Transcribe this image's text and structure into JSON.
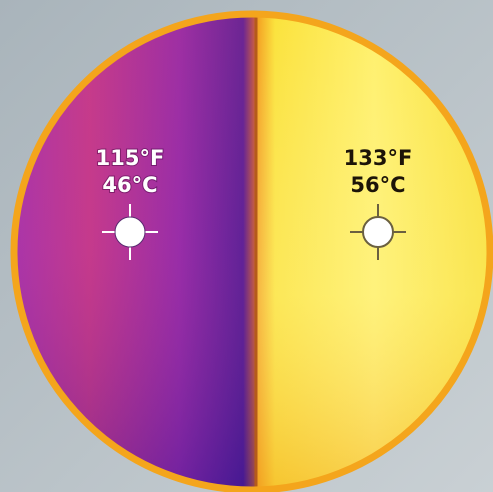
{
  "readings": [
    {
      "fahrenheit": "115°F",
      "celsius": "46°C"
    },
    {
      "fahrenheit": "133°F",
      "celsius": "56°C"
    }
  ]
}
